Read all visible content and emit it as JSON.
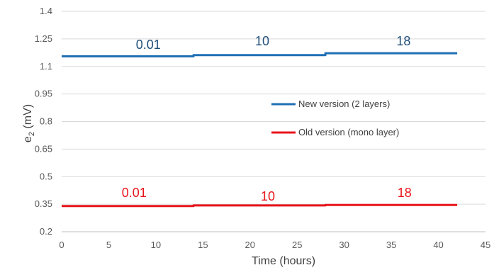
{
  "chart_data": {
    "type": "line",
    "title": "",
    "xlabel": "Time (hours)",
    "ylabel": {
      "base": "e",
      "sub": "2",
      "rest": " (mV)"
    },
    "xlim": [
      0,
      45
    ],
    "ylim": [
      0.2,
      1.4
    ],
    "x_ticks": [
      "0",
      "5",
      "10",
      "15",
      "20",
      "25",
      "30",
      "35",
      "40",
      "45"
    ],
    "y_ticks": [
      "0.2",
      "0.35",
      "0.5",
      "0.65",
      "0.8",
      "0.95",
      "1.1",
      "1.25",
      "1.4"
    ],
    "grid": "horizontal",
    "legend_position": "center-right",
    "series": [
      {
        "name": "New version (2 layers)",
        "color": "#1F6FB4",
        "points": [
          [
            0,
            1.155
          ],
          [
            14,
            1.155
          ],
          [
            14,
            1.162
          ],
          [
            28,
            1.162
          ],
          [
            28,
            1.172
          ],
          [
            42,
            1.172
          ]
        ]
      },
      {
        "name": "Old version (mono layer)",
        "color": "#E8141B",
        "points": [
          [
            0,
            0.34
          ],
          [
            14,
            0.34
          ],
          [
            14,
            0.343
          ],
          [
            28,
            0.343
          ],
          [
            28,
            0.346
          ],
          [
            42,
            0.346
          ]
        ]
      }
    ],
    "annotations": [
      {
        "text": "0.01",
        "x": 9.2,
        "y": 1.195,
        "color": "#1F4E79"
      },
      {
        "text": "10",
        "x": 21.3,
        "y": 1.215,
        "color": "#1F4E79"
      },
      {
        "text": "18",
        "x": 36.3,
        "y": 1.215,
        "color": "#1F4E79"
      },
      {
        "text": "0.01",
        "x": 7.7,
        "y": 0.39,
        "color": "#E8141B"
      },
      {
        "text": "10",
        "x": 21.9,
        "y": 0.37,
        "color": "#E8141B"
      },
      {
        "text": "18",
        "x": 36.4,
        "y": 0.39,
        "color": "#E8141B"
      }
    ]
  }
}
